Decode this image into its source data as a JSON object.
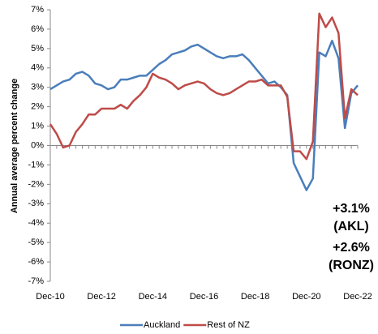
{
  "chart_data": {
    "type": "line",
    "y_label": "Annual average percent change",
    "categories": [
      "Dec-10",
      null,
      null,
      null,
      null,
      null,
      null,
      null,
      "Dec-12",
      null,
      null,
      null,
      null,
      null,
      null,
      null,
      "Dec-14",
      null,
      null,
      null,
      null,
      null,
      null,
      null,
      "Dec-16",
      null,
      null,
      null,
      null,
      null,
      null,
      null,
      "Dec-18",
      null,
      null,
      null,
      null,
      null,
      null,
      null,
      "Dec-20",
      null,
      null,
      null,
      null,
      null,
      null,
      null,
      "Dec-22"
    ],
    "series": [
      {
        "name": "Auckland",
        "color": "#4a7ebb",
        "values": [
          2.9,
          3.1,
          3.3,
          3.4,
          3.7,
          3.8,
          3.6,
          3.2,
          3.1,
          2.9,
          3.0,
          3.4,
          3.4,
          3.5,
          3.6,
          3.6,
          3.9,
          4.2,
          4.4,
          4.7,
          4.8,
          4.9,
          5.1,
          5.2,
          5.0,
          4.8,
          4.6,
          4.5,
          4.6,
          4.6,
          4.7,
          4.4,
          4.0,
          3.6,
          3.2,
          3.3,
          3.0,
          2.6,
          -0.9,
          -1.6,
          -2.3,
          -1.7,
          4.8,
          4.6,
          5.4,
          4.5,
          0.9,
          2.7,
          3.1
        ]
      },
      {
        "name": "Rest of NZ",
        "color": "#be4b48",
        "values": [
          1.1,
          0.6,
          -0.1,
          0.0,
          0.7,
          1.1,
          1.6,
          1.6,
          1.9,
          1.9,
          1.9,
          2.1,
          1.9,
          2.3,
          2.6,
          3.0,
          3.7,
          3.5,
          3.4,
          3.2,
          2.9,
          3.1,
          3.2,
          3.3,
          3.2,
          2.9,
          2.7,
          2.6,
          2.7,
          2.9,
          3.1,
          3.3,
          3.3,
          3.4,
          3.1,
          3.1,
          3.1,
          2.5,
          -0.3,
          -0.3,
          -0.7,
          0.2,
          6.8,
          6.1,
          6.6,
          5.8,
          1.4,
          2.9,
          2.6
        ]
      }
    ],
    "ylim": [
      -7,
      7
    ],
    "yticks": [
      {
        "value": 7,
        "label": "7%"
      },
      {
        "value": 6,
        "label": "6%"
      },
      {
        "value": 5,
        "label": "5%"
      },
      {
        "value": 4,
        "label": "4%"
      },
      {
        "value": 3,
        "label": "3%"
      },
      {
        "value": 2,
        "label": "2%"
      },
      {
        "value": 1,
        "label": "1%"
      },
      {
        "value": 0,
        "label": "0%"
      },
      {
        "value": -1,
        "label": "-1%"
      },
      {
        "value": -2,
        "label": "-2%"
      },
      {
        "value": -3,
        "label": "-3%"
      },
      {
        "value": -4,
        "label": "-4%"
      },
      {
        "value": -5,
        "label": "-5%"
      },
      {
        "value": -6,
        "label": "-6%"
      },
      {
        "value": -7,
        "label": "-7%"
      }
    ],
    "grid": false,
    "legend": "bottom",
    "annotations": [
      {
        "text": "+3.1%",
        "color": "#1f6fbf"
      },
      {
        "text": "(AKL)",
        "color": "#1f6fbf"
      },
      {
        "text": "+2.6%",
        "color": "#b0221c"
      },
      {
        "text": "(RONZ)",
        "color": "#b0221c"
      }
    ]
  }
}
